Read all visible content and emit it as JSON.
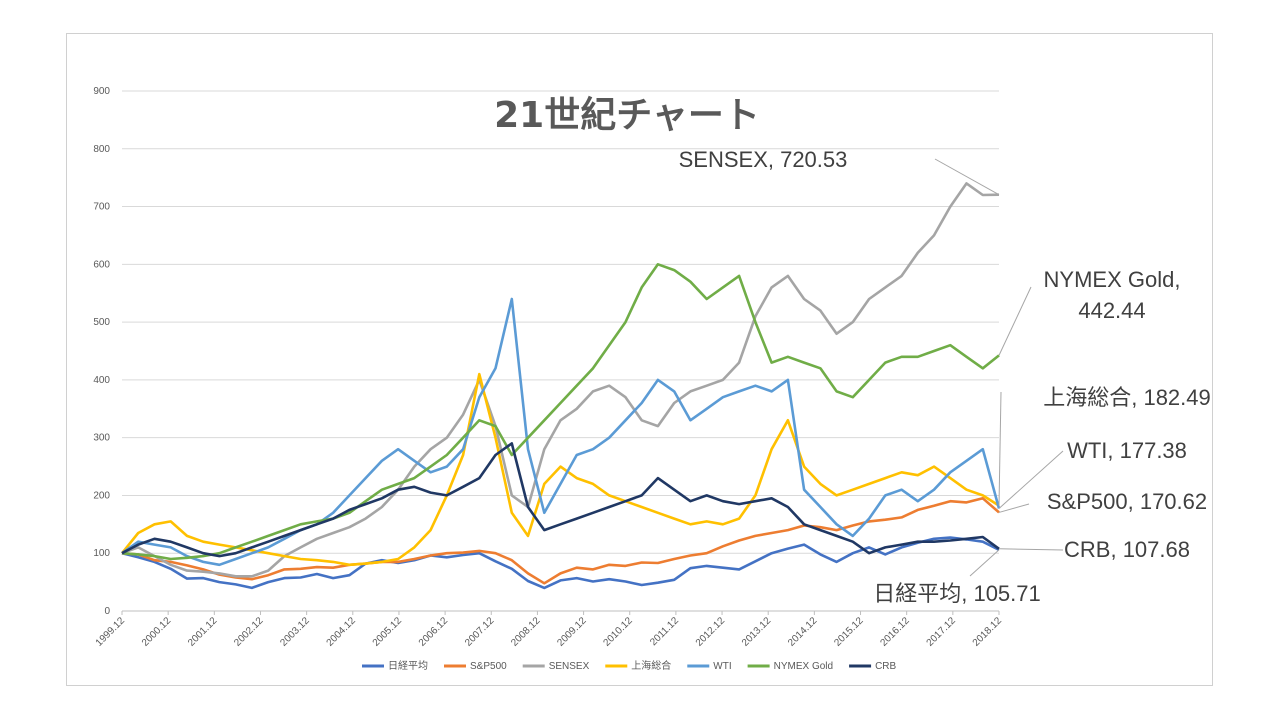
{
  "chart_data": {
    "type": "line",
    "title": "21世紀チャート",
    "xlabel": "",
    "ylabel": "",
    "ylim": [
      0,
      900
    ],
    "y_ticks": [
      "0",
      "100",
      "200",
      "300",
      "400",
      "500",
      "600",
      "700",
      "800",
      "900"
    ],
    "grid": "horizontal",
    "legend_position": "bottom",
    "x_ticks": [
      "1999.12",
      "2000.12",
      "2001.12",
      "2002.12",
      "2003.12",
      "2004.12",
      "2005.12",
      "2006.12",
      "2007.12",
      "2008.12",
      "2009.12",
      "2010.12",
      "2011.12",
      "2012.12",
      "2013.12",
      "2014.12",
      "2015.12",
      "2016.12",
      "2017.12",
      "2018.12"
    ],
    "series": [
      {
        "name": "日経平均",
        "color": "#4472C4",
        "values": [
          100,
          93,
          85,
          73,
          56,
          57,
          50,
          46,
          40,
          50,
          57,
          58,
          64,
          57,
          62,
          82,
          88,
          83,
          88,
          96,
          93,
          97,
          100,
          86,
          73,
          52,
          40,
          53,
          57,
          51,
          55,
          51,
          45,
          49,
          54,
          74,
          78,
          75,
          72,
          86,
          100,
          108,
          115,
          98,
          85,
          100,
          110,
          98,
          110,
          118,
          125,
          127,
          124,
          120,
          105.71
        ]
      },
      {
        "name": "S&P500",
        "color": "#ED7D31",
        "values": [
          100,
          98,
          88,
          85,
          79,
          72,
          63,
          58,
          55,
          62,
          72,
          73,
          76,
          75,
          80,
          82,
          85,
          85,
          90,
          96,
          100,
          101,
          104,
          100,
          88,
          65,
          48,
          65,
          75,
          72,
          80,
          78,
          84,
          83,
          90,
          96,
          100,
          112,
          122,
          130,
          135,
          140,
          148,
          145,
          140,
          148,
          155,
          158,
          162,
          175,
          182,
          190,
          188,
          195,
          170.62
        ]
      },
      {
        "name": "SENSEX",
        "color": "#A5A5A5",
        "values": [
          100,
          110,
          95,
          80,
          70,
          68,
          65,
          60,
          60,
          70,
          95,
          110,
          125,
          135,
          145,
          160,
          180,
          210,
          250,
          280,
          300,
          340,
          400,
          320,
          200,
          180,
          280,
          330,
          350,
          380,
          390,
          370,
          330,
          320,
          360,
          380,
          390,
          400,
          430,
          510,
          560,
          580,
          540,
          520,
          480,
          500,
          540,
          560,
          580,
          620,
          650,
          700,
          740,
          720,
          720.53
        ]
      },
      {
        "name": "上海総合",
        "color": "#FFC000",
        "values": [
          100,
          135,
          150,
          155,
          130,
          120,
          115,
          110,
          105,
          100,
          95,
          90,
          88,
          85,
          80,
          82,
          85,
          90,
          110,
          140,
          200,
          270,
          410,
          300,
          170,
          130,
          220,
          250,
          230,
          220,
          200,
          190,
          180,
          170,
          160,
          150,
          155,
          150,
          160,
          200,
          280,
          330,
          250,
          220,
          200,
          210,
          220,
          230,
          240,
          235,
          250,
          230,
          210,
          200,
          182.49
        ]
      },
      {
        "name": "WTI",
        "color": "#5B9BD5",
        "values": [
          100,
          120,
          115,
          110,
          95,
          85,
          80,
          90,
          100,
          110,
          125,
          140,
          150,
          170,
          200,
          230,
          260,
          280,
          260,
          240,
          250,
          280,
          370,
          420,
          540,
          280,
          170,
          220,
          270,
          280,
          300,
          330,
          360,
          400,
          380,
          330,
          350,
          370,
          380,
          390,
          380,
          400,
          210,
          180,
          150,
          130,
          160,
          200,
          210,
          190,
          210,
          240,
          260,
          280,
          177.38
        ]
      },
      {
        "name": "NYMEX Gold",
        "color": "#70AD47",
        "values": [
          100,
          98,
          95,
          90,
          92,
          95,
          100,
          110,
          120,
          130,
          140,
          150,
          155,
          160,
          170,
          190,
          210,
          220,
          230,
          250,
          270,
          300,
          330,
          320,
          270,
          300,
          330,
          360,
          390,
          420,
          460,
          500,
          560,
          600,
          590,
          570,
          540,
          560,
          580,
          500,
          430,
          440,
          430,
          420,
          380,
          370,
          400,
          430,
          440,
          440,
          450,
          460,
          440,
          420,
          442.44
        ]
      },
      {
        "name": "CRB",
        "color": "#203864",
        "values": [
          100,
          115,
          125,
          120,
          110,
          100,
          95,
          100,
          110,
          120,
          130,
          140,
          150,
          160,
          175,
          185,
          195,
          210,
          215,
          205,
          200,
          215,
          230,
          270,
          290,
          180,
          140,
          150,
          160,
          170,
          180,
          190,
          200,
          230,
          210,
          190,
          200,
          190,
          185,
          190,
          195,
          180,
          150,
          140,
          130,
          120,
          100,
          110,
          115,
          120,
          120,
          122,
          125,
          128,
          107.68
        ]
      }
    ],
    "callouts": [
      {
        "text": "SENSEX, 720.53",
        "series": "SENSEX"
      },
      {
        "text": "NYMEX Gold,",
        "text2": "442.44",
        "series": "NYMEX Gold"
      },
      {
        "text": "上海総合, 182.49",
        "series": "上海総合"
      },
      {
        "text": "WTI, 177.38",
        "series": "WTI"
      },
      {
        "text": "S&P500, 170.62",
        "series": "S&P500"
      },
      {
        "text": "CRB, 107.68",
        "series": "CRB"
      },
      {
        "text": "日経平均, 105.71",
        "series": "日経平均"
      }
    ]
  }
}
